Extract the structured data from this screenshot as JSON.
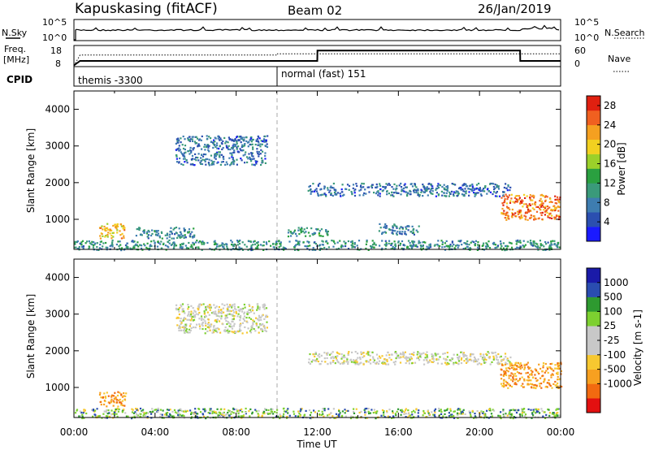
{
  "header": {
    "station": "Kapuskasing (fitACF)",
    "beam": "Beam 02",
    "date": "26/Jan/2019"
  },
  "summary": {
    "nsky_label": "N.Sky",
    "nsearch_label": "N.Search",
    "freq_label_1": "Freq.",
    "freq_label_2": "[MHz]",
    "nave_label": "Nave",
    "cpid_label": "CPID",
    "nsky_ticks": [
      "10^5",
      "10^0"
    ],
    "nsearch_ticks": [
      "10^5",
      "10^0"
    ],
    "freq_ticks": [
      "18",
      "8"
    ],
    "nave_ticks": [
      "60",
      "0"
    ],
    "cpid_1": "themis -3300",
    "cpid_2": "normal (fast) 151"
  },
  "colors": {
    "power_scale": [
      "#1a1aff",
      "#2b4fb0",
      "#3e7db0",
      "#3a9a7a",
      "#2aa040",
      "#9bd02a",
      "#f2d020",
      "#f5a020",
      "#f06020",
      "#e02010"
    ],
    "velocity_scale": [
      "#e31010",
      "#f26a10",
      "#f7a020",
      "#f7c830",
      "#c8c8c8",
      "#c8c8c8",
      "#7dd030",
      "#2e9a30",
      "#2a4db0",
      "#1a1aa8"
    ]
  },
  "chart_data": [
    {
      "type": "heatmap",
      "name": "Power",
      "xlabel": "Time UT",
      "ylabel": "Slant Range [km]",
      "xlim": [
        0,
        24
      ],
      "ylim": [
        180,
        4500
      ],
      "x_ticks": [
        "00:00",
        "04:00",
        "08:00",
        "12:00",
        "16:00",
        "20:00",
        "00:00"
      ],
      "y_ticks": [
        1000,
        2000,
        3000,
        4000
      ],
      "colorbar_label": "Power [dB]",
      "colorbar_ticks": [
        4,
        8,
        12,
        16,
        20,
        24,
        28
      ],
      "colorbar_range": [
        0,
        30
      ],
      "regions": [
        {
          "t": [
            1.2,
            2.6
          ],
          "r": [
            500,
            900
          ],
          "v": 20
        },
        {
          "t": [
            5.0,
            9.5
          ],
          "r": [
            2500,
            3300
          ],
          "v": 7
        },
        {
          "t": [
            0.0,
            24.0
          ],
          "r": [
            180,
            450
          ],
          "v": 10
        },
        {
          "t": [
            11.5,
            21.5
          ],
          "r": [
            1650,
            2000
          ],
          "v": 7
        },
        {
          "t": [
            21.0,
            24.0
          ],
          "r": [
            1000,
            1700
          ],
          "v": 24
        },
        {
          "t": [
            3.0,
            6.0
          ],
          "r": [
            500,
            800
          ],
          "v": 9
        },
        {
          "t": [
            10.5,
            12.5
          ],
          "r": [
            550,
            800
          ],
          "v": 11
        },
        {
          "t": [
            15.0,
            17.0
          ],
          "r": [
            600,
            900
          ],
          "v": 8
        }
      ]
    },
    {
      "type": "heatmap",
      "name": "Velocity",
      "xlabel": "Time UT",
      "ylabel": "Slant Range [km]",
      "xlim": [
        0,
        24
      ],
      "ylim": [
        180,
        4500
      ],
      "x_ticks": [
        "00:00",
        "04:00",
        "08:00",
        "12:00",
        "16:00",
        "20:00",
        "00:00"
      ],
      "y_ticks": [
        1000,
        2000,
        3000,
        4000
      ],
      "colorbar_label": "Velocity [m s-1]",
      "colorbar_ticks": [
        "1000",
        "500",
        "100",
        "25",
        "-25",
        "-100",
        "-500",
        "-1000"
      ],
      "regions": [
        {
          "t": [
            1.2,
            2.6
          ],
          "r": [
            500,
            900
          ],
          "v": -200
        },
        {
          "t": [
            5.0,
            9.5
          ],
          "r": [
            2500,
            3300
          ],
          "v": 0
        },
        {
          "t": [
            0.0,
            24.0
          ],
          "r": [
            180,
            450
          ],
          "v": 100
        },
        {
          "t": [
            11.5,
            21.5
          ],
          "r": [
            1650,
            2000
          ],
          "v": 0
        },
        {
          "t": [
            21.0,
            24.0
          ],
          "r": [
            1000,
            1700
          ],
          "v": -200
        }
      ]
    },
    {
      "type": "line",
      "name": "Frequency",
      "x": [
        0,
        0.3,
        10.0,
        12.0,
        12.01,
        22.0,
        22.01,
        24
      ],
      "y": [
        8.2,
        10.5,
        10.5,
        10.5,
        15.8,
        15.8,
        10.5,
        10.5
      ],
      "ylim": [
        8,
        18
      ]
    },
    {
      "type": "line",
      "name": "Nave",
      "x": [
        0,
        0.3,
        10.0,
        10.01,
        24
      ],
      "y": [
        0,
        33,
        33,
        37,
        37
      ],
      "ylim": [
        0,
        60
      ]
    }
  ]
}
